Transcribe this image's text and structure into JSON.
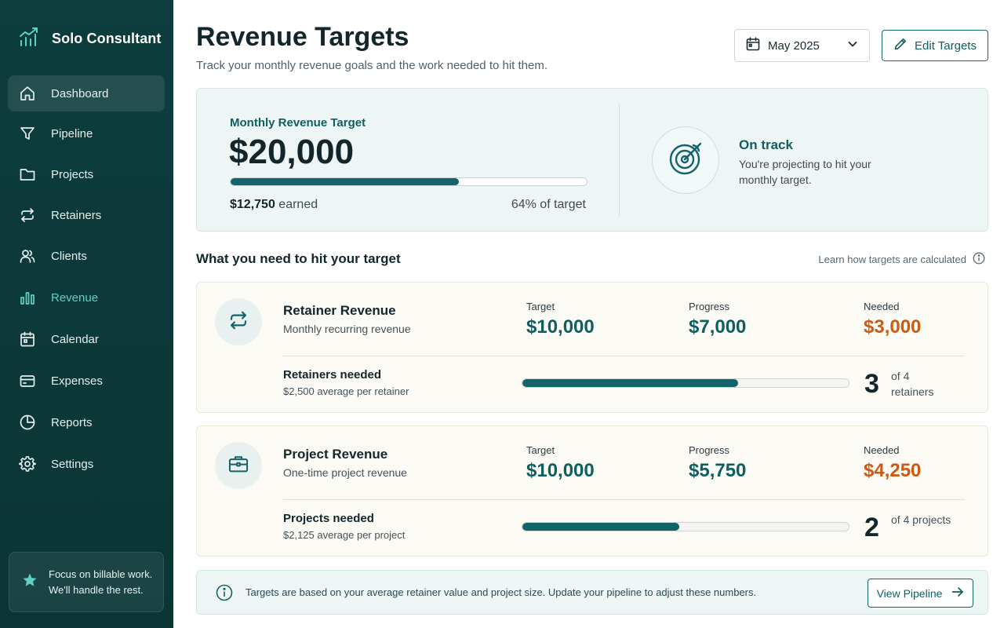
{
  "app": {
    "name": "Solo Consultant"
  },
  "sidebar": {
    "items": [
      {
        "label": "Dashboard",
        "icon": "home-icon"
      },
      {
        "label": "Pipeline",
        "icon": "funnel-icon"
      },
      {
        "label": "Projects",
        "icon": "folder-icon"
      },
      {
        "label": "Retainers",
        "icon": "repeat-icon"
      },
      {
        "label": "Clients",
        "icon": "users-icon"
      },
      {
        "label": "Revenue",
        "icon": "bar-chart-icon"
      },
      {
        "label": "Calendar",
        "icon": "calendar-icon"
      },
      {
        "label": "Expenses",
        "icon": "wallet-icon"
      },
      {
        "label": "Reports",
        "icon": "pie-chart-icon"
      },
      {
        "label": "Settings",
        "icon": "gear-icon"
      }
    ],
    "tip": "Focus on billable work. We'll handle the rest."
  },
  "header": {
    "title": "Revenue Targets",
    "subtitle": "Track your monthly revenue goals and the work needed to hit them.",
    "month": "May 2025",
    "edit_label": "Edit Targets"
  },
  "summary": {
    "label": "Monthly Revenue Target",
    "value": "$20,000",
    "earned_amount": "$12,750",
    "earned_suffix": " earned",
    "progress": 0.64,
    "pct_text": "64% of target",
    "status_title": "On track",
    "status_desc": "You're projecting to hit your monthly target."
  },
  "section": {
    "title": "What you need to hit your target",
    "learn": "Learn how targets are calculated"
  },
  "cards": [
    {
      "title": "Retainer Revenue",
      "subtitle": "Monthly recurring revenue",
      "target_label": "Target",
      "target": "$10,000",
      "progress_label": "Progress",
      "progress_value": "$7,000",
      "needed_label": "Needed",
      "needed": "$3,000",
      "row_title": "Retainers needed",
      "row_sub": "$2,500 average per retainer",
      "fill": 0.66,
      "count": "3",
      "of_text": "of 4 retainers"
    },
    {
      "title": "Project Revenue",
      "subtitle": "One-time project revenue",
      "target_label": "Target",
      "target": "$10,000",
      "progress_label": "Progress",
      "progress_value": "$5,750",
      "needed_label": "Needed",
      "needed": "$4,250",
      "row_title": "Projects needed",
      "row_sub": "$2,125 average per project",
      "fill": 0.48,
      "count": "2",
      "of_text": "of 4 projects"
    }
  ],
  "info": {
    "text": "Targets are based on your average retainer value and project size. Update your pipeline to adjust these numbers.",
    "button": "View Pipeline"
  },
  "colors": {
    "accent": "#13646a",
    "sidebar": "#0d3d3d",
    "needed": "#cc5a12"
  }
}
